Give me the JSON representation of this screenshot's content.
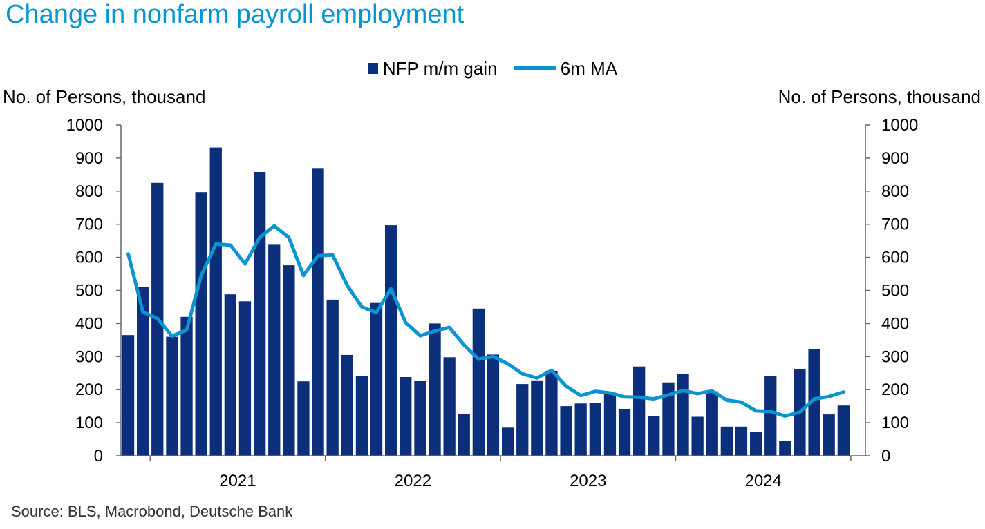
{
  "chart_data": {
    "type": "bar",
    "title": "Change in nonfarm payroll employment",
    "ylabel_left": "No. of Persons, thousand",
    "ylabel_right": "No. of Persons, thousand",
    "ylim": [
      0,
      1000
    ],
    "yticks": [
      "0",
      "100",
      "200",
      "300",
      "400",
      "500",
      "600",
      "700",
      "800",
      "900",
      "1000"
    ],
    "year_labels": [
      "2021",
      "2022",
      "2023",
      "2024"
    ],
    "source": "Source: BLS, Macrobond, Deutsche Bank",
    "grid": false,
    "legend_position": "top-center",
    "colors": {
      "bars": "#0b2f7a",
      "line": "#0a94d1",
      "title": "#0096d6"
    },
    "categories": [
      "2020-11",
      "2020-12",
      "2021-01",
      "2021-02",
      "2021-03",
      "2021-04",
      "2021-05",
      "2021-06",
      "2021-07",
      "2021-08",
      "2021-09",
      "2021-10",
      "2021-11",
      "2021-12",
      "2022-01",
      "2022-02",
      "2022-03",
      "2022-04",
      "2022-05",
      "2022-06",
      "2022-07",
      "2022-08",
      "2022-09",
      "2022-10",
      "2022-11",
      "2022-12",
      "2023-01",
      "2023-02",
      "2023-03",
      "2023-04",
      "2023-05",
      "2023-06",
      "2023-07",
      "2023-08",
      "2023-09",
      "2023-10",
      "2023-11",
      "2023-12",
      "2024-01",
      "2024-02",
      "2024-03",
      "2024-04",
      "2024-05",
      "2024-06",
      "2024-07",
      "2024-08",
      "2024-09",
      "2024-10",
      "2024-11",
      "2024-12",
      "2025-01"
    ],
    "series": [
      {
        "name": "NFP m/m gain",
        "kind": "bar",
        "values": [
          365,
          510,
          825,
          360,
          420,
          797,
          932,
          488,
          467,
          858,
          638,
          576,
          225,
          870,
          472,
          305,
          242,
          462,
          697,
          238,
          227,
          400,
          298,
          126,
          445,
          306,
          85,
          217,
          228,
          257,
          150,
          158,
          159,
          190,
          142,
          270,
          119,
          222,
          247,
          118,
          195,
          88,
          88,
          72,
          240,
          45,
          261,
          323,
          125,
          152,
          null
        ]
      },
      {
        "name": "6m MA",
        "kind": "line",
        "values": [
          610,
          435,
          415,
          362,
          380,
          545,
          640,
          637,
          580,
          660,
          695,
          660,
          545,
          605,
          607,
          515,
          450,
          433,
          505,
          403,
          363,
          377,
          388,
          335,
          292,
          300,
          278,
          248,
          235,
          258,
          210,
          182,
          195,
          190,
          178,
          177,
          172,
          184,
          197,
          188,
          196,
          168,
          162,
          136,
          134,
          120,
          132,
          172,
          179,
          193,
          null
        ]
      }
    ]
  }
}
